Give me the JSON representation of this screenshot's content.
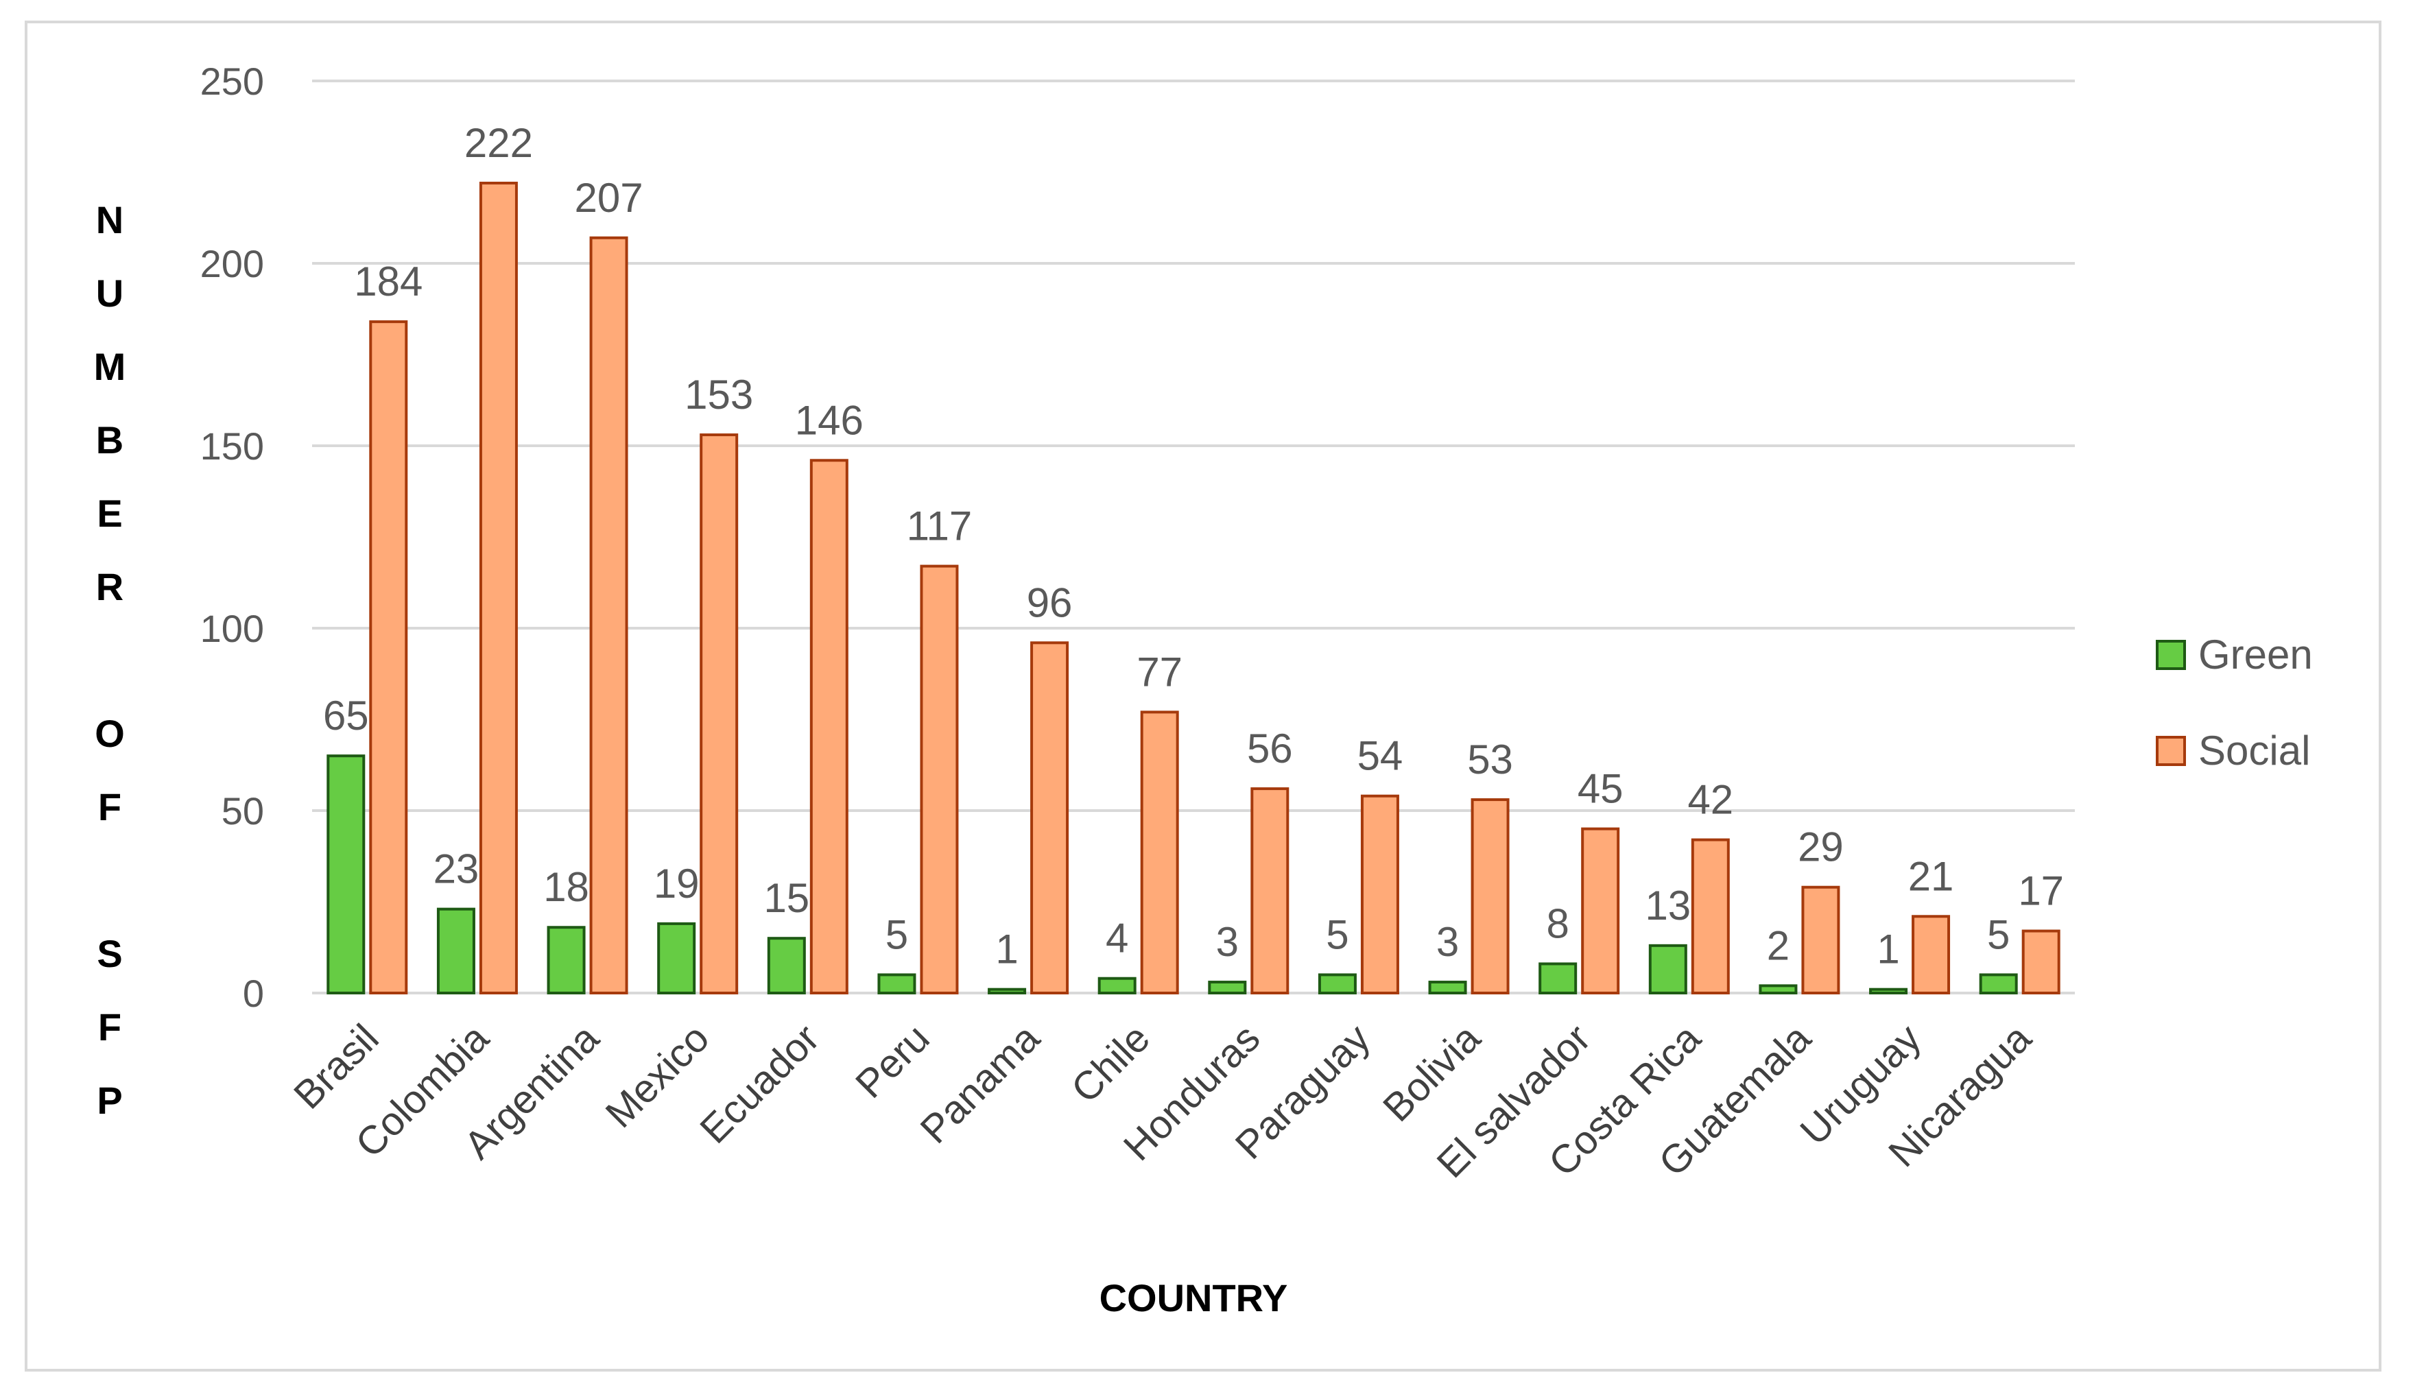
{
  "chart_data": {
    "type": "bar",
    "title": "",
    "xlabel": "COUNTRY",
    "ylabel": "NUMBER OF SFP",
    "ylim": [
      0,
      250
    ],
    "yticks": [
      0,
      50,
      100,
      150,
      200,
      250
    ],
    "grid": true,
    "legend_position": "right",
    "categories": [
      "Brasil",
      "Colombia",
      "Argentina",
      "Mexico",
      "Ecuador",
      "Peru",
      "Panama",
      "Chile",
      "Honduras",
      "Paraguay",
      "Bolivia",
      "El salvador",
      "Costa Rica",
      "Guatemala",
      "Uruguay",
      "Nicaragua"
    ],
    "series": [
      {
        "name": "Green",
        "color": "#66cc44",
        "stroke": "#1e5a14",
        "values": [
          65,
          23,
          18,
          19,
          15,
          5,
          1,
          4,
          3,
          5,
          3,
          8,
          13,
          2,
          1,
          5
        ]
      },
      {
        "name": "Social",
        "color": "#ffaa78",
        "stroke": "#a63a0c",
        "values": [
          184,
          222,
          207,
          153,
          146,
          117,
          96,
          77,
          56,
          54,
          53,
          45,
          42,
          29,
          21,
          17
        ]
      }
    ]
  }
}
